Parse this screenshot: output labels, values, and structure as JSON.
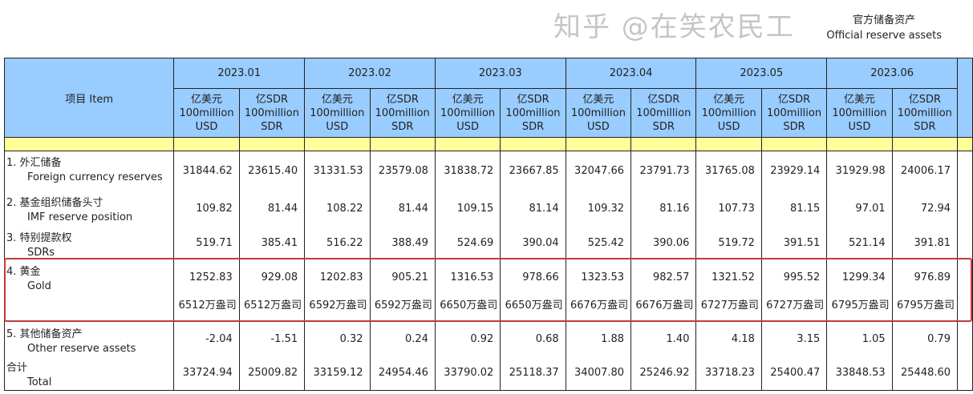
{
  "title": {
    "zh": "官方储备资产",
    "en": "Official reserve assets"
  },
  "header": {
    "item": "项目  Item",
    "months": [
      "2023.01",
      "2023.02",
      "2023.03",
      "2023.04",
      "2023.05",
      "2023.06"
    ],
    "units": [
      {
        "zh": "亿美元",
        "en1": "100million",
        "en2": "USD"
      },
      {
        "zh": "亿SDR",
        "en1": "100million",
        "en2": "SDR"
      }
    ]
  },
  "rows": [
    {
      "zh": "1.  外汇储备",
      "en": "Foreign currency reserves",
      "values": [
        "31844.62",
        "23615.40",
        "31331.53",
        "23579.08",
        "31838.72",
        "23667.85",
        "32047.66",
        "23791.73",
        "31765.08",
        "23929.14",
        "31929.98",
        "24006.17"
      ]
    },
    {
      "zh": "2.  基金组织储备头寸",
      "en": "IMF reserve position",
      "values": [
        "109.82",
        "81.44",
        "108.22",
        "81.44",
        "109.15",
        "81.14",
        "109.32",
        "81.16",
        "107.73",
        "81.15",
        "97.01",
        "72.94"
      ]
    },
    {
      "zh": "3.  特别提款权",
      "en": "SDRs",
      "values": [
        "519.71",
        "385.41",
        "516.22",
        "388.49",
        "524.69",
        "390.04",
        "525.42",
        "390.06",
        "519.72",
        "391.51",
        "521.14",
        "391.81"
      ]
    },
    {
      "zh": "4.  黄金",
      "en": "Gold",
      "values": [
        "1252.83",
        "929.08",
        "1202.83",
        "905.21",
        "1316.53",
        "978.66",
        "1323.53",
        "982.57",
        "1321.52",
        "995.52",
        "1299.34",
        "976.89"
      ],
      "ounces": [
        "6512万盎司",
        "6512万盎司",
        "6592万盎司",
        "6592万盎司",
        "6650万盎司",
        "6650万盎司",
        "6676万盎司",
        "6676万盎司",
        "6727万盎司",
        "6727万盎司",
        "6795万盎司",
        "6795万盎司"
      ]
    },
    {
      "zh": "5.  其他储备资产",
      "en": "Other reserve assets",
      "values": [
        "-2.04",
        "-1.51",
        "0.32",
        "0.24",
        "0.92",
        "0.68",
        "1.88",
        "1.40",
        "4.18",
        "3.15",
        "1.05",
        "0.79"
      ]
    },
    {
      "zh": "合计",
      "en": "Total",
      "values": [
        "33724.94",
        "25009.82",
        "33159.12",
        "24954.46",
        "33790.02",
        "25118.37",
        "34007.80",
        "25246.92",
        "33718.23",
        "25400.47",
        "33848.53",
        "25448.60"
      ]
    }
  ],
  "highlight_color": "#c23a3a",
  "watermark": "知乎 @在笑农民工"
}
